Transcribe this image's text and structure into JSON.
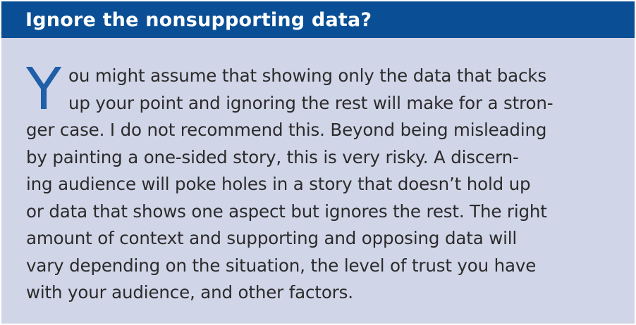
{
  "sidebar_box": {
    "title": "Ignore the nonsupporting data?",
    "drop_cap": "Y",
    "lines": [
      "ou might assume that showing only the data that backs",
      "up your point and ignoring the rest will make for a stron-",
      "ger case. I do not recommend this. Beyond being misleading",
      "by painting a one-sided story, this is very risky. A discern-",
      "ing audience will poke holes in a story that doesn’t hold up",
      "or data that shows one aspect but ignores the rest. The right",
      "amount of context and supporting and opposing data will",
      "vary depending on the situation, the level of trust you have",
      "with your audience, and other factors."
    ],
    "colors": {
      "header_bg": "#0a4f96",
      "box_bg": "#d1d5e8",
      "drop_cap": "#1f5fa8",
      "text": "#2b2b2b"
    }
  }
}
